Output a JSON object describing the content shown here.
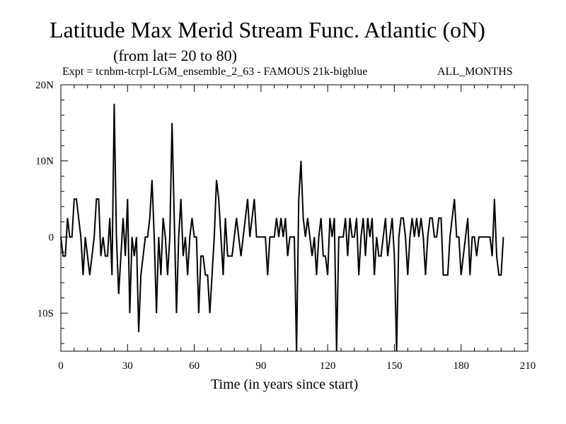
{
  "chart_data": {
    "type": "line",
    "title": "Latitude Max Merid Stream Func. Atlantic (oN)",
    "subtitle": "(from lat= 20 to 80)",
    "experiment_label": "Expt = tcnbm-tcrpl-LGM_ensemble_2_63 - FAMOUS 21k-bigblue",
    "period_label": "ALL_MONTHS",
    "xlabel": "Time (in years since start)",
    "ylabel": "",
    "xlim": [
      0,
      210
    ],
    "ylim": [
      -15,
      20
    ],
    "x_ticks": [
      0,
      30,
      60,
      90,
      120,
      150,
      180,
      210
    ],
    "x_tick_labels": [
      "0",
      "30",
      "60",
      "90",
      "120",
      "150",
      "180",
      "210"
    ],
    "y_ticks": [
      -10,
      0,
      10,
      20
    ],
    "y_tick_labels": [
      "10S",
      "0",
      "10N",
      "20N"
    ],
    "grid": false,
    "series": [
      {
        "x": [
          0,
          1,
          2,
          3,
          4,
          5,
          6,
          7,
          8,
          9,
          10,
          11,
          12,
          13,
          14,
          15,
          16,
          17,
          18,
          19,
          20,
          21,
          22,
          23,
          24,
          25,
          26,
          27,
          28,
          29,
          30,
          31,
          32,
          33,
          34,
          35,
          36,
          37,
          38,
          39,
          40,
          41,
          42,
          43,
          44,
          45,
          46,
          47,
          48,
          49,
          50,
          51,
          52,
          53,
          54,
          55,
          56,
          57,
          58,
          59,
          60,
          61,
          62,
          63,
          64,
          65,
          66,
          67,
          68,
          69,
          70,
          71,
          72,
          73,
          74,
          75,
          76,
          77,
          78,
          79,
          80,
          81,
          82,
          83,
          84,
          85,
          86,
          87,
          88,
          89,
          90,
          91,
          92,
          93,
          94,
          95,
          96,
          97,
          98,
          99,
          100,
          101,
          102,
          103,
          104,
          105,
          106,
          107,
          108,
          109,
          110,
          111,
          112,
          113,
          114,
          115,
          116,
          117,
          118,
          119,
          120,
          121,
          122,
          123,
          124,
          125,
          126,
          127,
          128,
          129,
          130,
          131,
          132,
          133,
          134,
          135,
          136,
          137,
          138,
          139,
          140,
          141,
          142,
          143,
          144,
          145,
          146,
          147,
          148,
          149,
          150,
          151,
          152,
          153,
          154,
          155,
          156,
          157,
          158,
          159,
          160,
          161,
          162,
          163,
          164,
          165,
          166,
          167,
          168,
          169,
          170,
          171,
          172,
          173,
          174,
          175,
          176,
          177,
          178,
          179,
          180,
          181,
          182,
          183,
          184,
          185,
          186,
          187,
          188,
          189,
          190,
          191,
          192,
          193,
          194,
          195,
          196,
          197,
          198,
          199
        ],
        "y": [
          0,
          -2.5,
          -2.5,
          2.5,
          0,
          0,
          5,
          5,
          2.5,
          0,
          -5,
          0,
          -2.5,
          -5,
          -2.5,
          0,
          5,
          5,
          -2.5,
          0,
          -2.5,
          -2.5,
          2.5,
          -5,
          17.5,
          0,
          -7.5,
          -2.5,
          2.5,
          -2.5,
          5,
          -10,
          0,
          -2.5,
          0,
          -12.5,
          -5,
          -2.5,
          0,
          0,
          2.5,
          7.5,
          0,
          -10,
          0,
          -5,
          2.5,
          0,
          -5,
          0,
          15,
          2.5,
          -10,
          0,
          5,
          -2.5,
          0,
          -5,
          0,
          2.5,
          0,
          0,
          -10,
          -2.5,
          -2.5,
          -5,
          -5,
          -10,
          -5,
          0,
          7.5,
          5,
          0,
          -5,
          2.5,
          -2.5,
          -2.5,
          -2.5,
          0,
          2.5,
          0,
          -2.5,
          0,
          2.5,
          5,
          0,
          2.5,
          5,
          0,
          0,
          0,
          0,
          0,
          -5,
          0,
          0,
          0,
          2.5,
          0,
          2.5,
          0,
          2.5,
          -2.5,
          0,
          0,
          0,
          -15,
          5,
          10,
          2.5,
          0,
          2.5,
          0,
          -2.5,
          0,
          -5,
          0,
          2.5,
          -2.5,
          -2.5,
          -5,
          2.5,
          0,
          2.5,
          -15,
          0,
          0,
          0,
          2.5,
          -2.5,
          2.5,
          0,
          0,
          2.5,
          -5,
          0,
          2.5,
          -2.5,
          2.5,
          0,
          2.5,
          -5,
          0,
          -2.5,
          -2.5,
          0,
          2.5,
          -2.5,
          0,
          2.5,
          -2.5,
          -15,
          0,
          2.5,
          2.5,
          0,
          -5,
          0,
          2.5,
          0,
          2.5,
          0,
          2.5,
          0,
          -5,
          0,
          2.5,
          2.5,
          0,
          0,
          2.5,
          2.5,
          -5,
          -5,
          -5,
          0,
          2.5,
          5,
          0,
          0,
          -5,
          -2.5,
          0,
          2.5,
          -5,
          0,
          0,
          -2.5,
          0,
          0,
          0,
          0,
          0,
          0,
          -2.5,
          5,
          -2.5,
          -5,
          -5,
          0
        ]
      }
    ]
  }
}
